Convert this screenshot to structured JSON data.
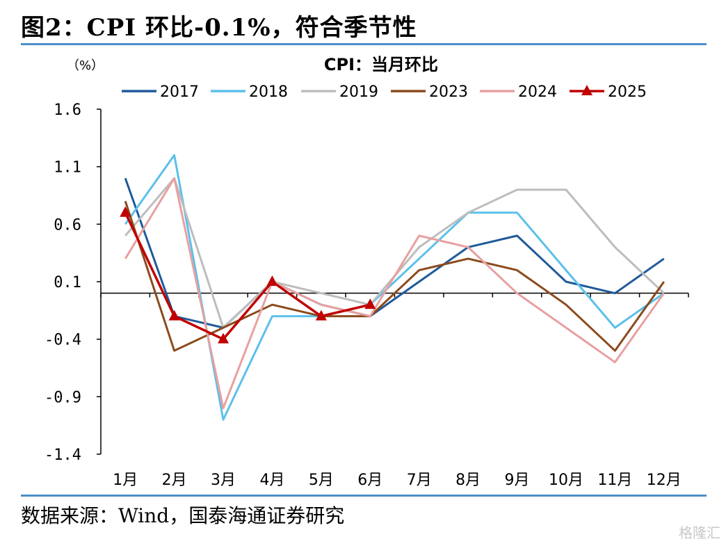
{
  "header": {
    "title": "图2：CPI 环比-0.1%，符合季节性"
  },
  "footer": {
    "source": "数据来源：Wind，国泰海通证券研究",
    "watermark": "格隆汇"
  },
  "colors": {
    "rule": "#4a90c8"
  },
  "chart_data": {
    "type": "line",
    "title": "CPI：当月环比",
    "unit_label": "（%）",
    "categories": [
      "1月",
      "2月",
      "3月",
      "4月",
      "5月",
      "6月",
      "7月",
      "8月",
      "9月",
      "10月",
      "11月",
      "12月"
    ],
    "ylim": [
      -1.4,
      1.6
    ],
    "yticks": [
      "1.6",
      "1.1",
      "0.6",
      "0.1",
      "-0.4",
      "-0.9",
      "-1.4"
    ],
    "grid": false,
    "legend_position": "top",
    "series": [
      {
        "name": "2017",
        "color": "#1f5a99",
        "marker": false,
        "values": [
          1.0,
          -0.2,
          -0.3,
          0.1,
          -0.1,
          -0.2,
          0.1,
          0.4,
          0.5,
          0.1,
          0.0,
          0.3
        ]
      },
      {
        "name": "2018",
        "color": "#5bc0eb",
        "marker": false,
        "values": [
          0.6,
          1.2,
          -1.1,
          -0.2,
          -0.2,
          -0.1,
          0.3,
          0.7,
          0.7,
          0.2,
          -0.3,
          0.0
        ]
      },
      {
        "name": "2019",
        "color": "#bdbdbd",
        "marker": false,
        "values": [
          0.5,
          1.0,
          -0.3,
          0.1,
          0.0,
          -0.1,
          0.4,
          0.7,
          0.9,
          0.9,
          0.4,
          0.0
        ]
      },
      {
        "name": "2023",
        "color": "#8b4a1c",
        "marker": false,
        "values": [
          0.8,
          -0.5,
          -0.3,
          -0.1,
          -0.2,
          -0.2,
          0.2,
          0.3,
          0.2,
          -0.1,
          -0.5,
          0.1
        ]
      },
      {
        "name": "2024",
        "color": "#e8a0a0",
        "marker": false,
        "values": [
          0.3,
          1.0,
          -1.0,
          0.1,
          -0.1,
          -0.2,
          0.5,
          0.4,
          0.0,
          -0.3,
          -0.6,
          0.0
        ]
      },
      {
        "name": "2025",
        "color": "#c00000",
        "marker": true,
        "values": [
          0.7,
          -0.2,
          -0.4,
          0.1,
          -0.2,
          -0.1,
          null,
          null,
          null,
          null,
          null,
          null
        ]
      }
    ]
  }
}
